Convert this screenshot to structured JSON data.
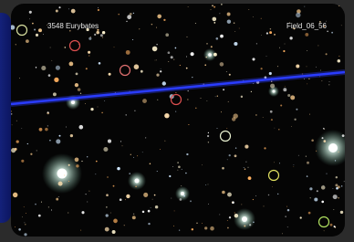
{
  "image": {
    "title": "3548 Eurybates",
    "field": "Field_06_56"
  }
}
